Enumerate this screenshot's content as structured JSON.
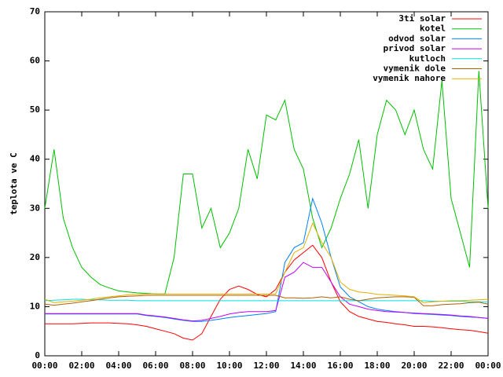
{
  "chart_data": {
    "type": "line",
    "ylabel": "teplota ve C",
    "xlim": [
      0,
      24
    ],
    "ylim": [
      0,
      70
    ],
    "yticks": [
      0,
      10,
      20,
      30,
      40,
      50,
      60,
      70
    ],
    "xticks": [
      {
        "value": 0,
        "label": "00:00"
      },
      {
        "value": 2,
        "label": "02:00"
      },
      {
        "value": 4,
        "label": "04:00"
      },
      {
        "value": 6,
        "label": "06:00"
      },
      {
        "value": 8,
        "label": "08:00"
      },
      {
        "value": 10,
        "label": "10:00"
      },
      {
        "value": 12,
        "label": "12:00"
      },
      {
        "value": 14,
        "label": "14:00"
      },
      {
        "value": 16,
        "label": "16:00"
      },
      {
        "value": 18,
        "label": "18:00"
      },
      {
        "value": 20,
        "label": "20:00"
      },
      {
        "value": 22,
        "label": "22:00"
      },
      {
        "value": 24,
        "label": "00:00"
      }
    ],
    "x": [
      0,
      0.5,
      1,
      1.5,
      2,
      2.5,
      3,
      3.5,
      4,
      4.5,
      5,
      5.5,
      6,
      6.5,
      7,
      7.5,
      8,
      8.5,
      9,
      9.5,
      10,
      10.5,
      11,
      11.5,
      12,
      12.5,
      13,
      13.5,
      14,
      14.5,
      15,
      15.5,
      16,
      16.5,
      17,
      17.5,
      18,
      18.5,
      19,
      19.5,
      20,
      20.5,
      21,
      21.5,
      22,
      22.5,
      23,
      23.5,
      24
    ],
    "series": [
      {
        "name": "3ti solar",
        "color": "#ff0000",
        "values": [
          6.5,
          6.5,
          6.5,
          6.5,
          6.6,
          6.7,
          6.7,
          6.7,
          6.6,
          6.5,
          6.3,
          6,
          5.5,
          5,
          4.5,
          3.6,
          3.2,
          4.5,
          8,
          11.5,
          13.5,
          14.2,
          13.5,
          12.5,
          12,
          13.5,
          17,
          19.5,
          21,
          22.5,
          20,
          15,
          11,
          9,
          8,
          7.5,
          7,
          6.8,
          6.5,
          6.3,
          6,
          6,
          5.9,
          5.7,
          5.5,
          5.3,
          5.2,
          4.9,
          4.6
        ]
      },
      {
        "name": "kotel",
        "color": "#00c000",
        "values": [
          30,
          42,
          28,
          22,
          18,
          16,
          14.5,
          13.8,
          13.2,
          13,
          12.8,
          12.7,
          12.6,
          12.6,
          20,
          37,
          37,
          26,
          30,
          22,
          25,
          30,
          42,
          36,
          49,
          48,
          52,
          42,
          38,
          28,
          22,
          26,
          32,
          37,
          44,
          30,
          45,
          52,
          50,
          45,
          50,
          42,
          38,
          56,
          32,
          25,
          18,
          58,
          30
        ]
      },
      {
        "name": "odvod solar",
        "color": "#0080ff",
        "values": [
          8.5,
          8.5,
          8.5,
          8.5,
          8.5,
          8.5,
          8.5,
          8.5,
          8.5,
          8.5,
          8.5,
          8.2,
          8,
          7.8,
          7.5,
          7.2,
          7,
          7,
          7.2,
          7.5,
          7.8,
          8,
          8.2,
          8.4,
          8.6,
          9,
          19,
          22,
          23,
          32,
          27,
          20,
          14,
          12,
          11,
          10,
          9.5,
          9.2,
          9,
          8.8,
          8.6,
          8.5,
          8.4,
          8.3,
          8.2,
          8,
          7.9,
          7.8,
          7.6
        ]
      },
      {
        "name": "privod solar",
        "color": "#c000ff",
        "values": [
          8.6,
          8.6,
          8.6,
          8.6,
          8.6,
          8.6,
          8.6,
          8.6,
          8.6,
          8.6,
          8.6,
          8.3,
          8.1,
          7.9,
          7.6,
          7.3,
          7.1,
          7.2,
          7.6,
          8,
          8.5,
          8.8,
          9,
          9,
          9,
          9.2,
          16,
          17,
          19,
          18,
          18,
          15,
          12,
          10.5,
          10,
          9.5,
          9.2,
          9,
          8.9,
          8.8,
          8.7,
          8.6,
          8.5,
          8.4,
          8.3,
          8.1,
          8,
          7.8,
          7.6
        ]
      },
      {
        "name": "kutloch",
        "color": "#00e0e0",
        "values": [
          11.2,
          11.3,
          11.4,
          11.5,
          11.5,
          11.4,
          11.4,
          11.3,
          11.3,
          11.3,
          11.2,
          11.2,
          11.2,
          11.2,
          11.2,
          11.2,
          11.2,
          11.2,
          11.2,
          11.2,
          11.2,
          11.2,
          11.2,
          11.2,
          11.2,
          11.2,
          11.2,
          11.2,
          11.2,
          11.2,
          11.2,
          11.2,
          11.2,
          11.2,
          11.2,
          11.2,
          11.2,
          11.2,
          11.2,
          11.2,
          11.2,
          11.2,
          11.1,
          11.1,
          11.1,
          11.1,
          11,
          11,
          11
        ]
      },
      {
        "name": "vymenik dole",
        "color": "#b06000",
        "values": [
          10.5,
          10.3,
          10.5,
          10.7,
          11,
          11.2,
          11.5,
          11.8,
          12,
          12.1,
          12.2,
          12.3,
          12.3,
          12.3,
          12.3,
          12.3,
          12.3,
          12.3,
          12.3,
          12.3,
          12.3,
          12.3,
          12.3,
          12.3,
          12.3,
          12.3,
          11.8,
          11.8,
          11.7,
          11.8,
          12,
          11.8,
          12,
          11.5,
          11.2,
          11.5,
          11.8,
          11.9,
          12,
          12,
          11.9,
          10.2,
          10.2,
          10.4,
          10.5,
          10.6,
          10.8,
          10.9,
          10.5
        ]
      },
      {
        "name": "vymenik nahore",
        "color": "#e0b000",
        "values": [
          11.5,
          10.8,
          11,
          11.1,
          11.3,
          11.5,
          11.8,
          12,
          12.2,
          12.4,
          12.5,
          12.6,
          12.6,
          12.6,
          12.6,
          12.6,
          12.6,
          12.6,
          12.6,
          12.6,
          12.6,
          12.6,
          12.6,
          12.6,
          12.6,
          12.6,
          17,
          21,
          22,
          27,
          23,
          20,
          15,
          13.5,
          13,
          12.8,
          12.5,
          12.4,
          12.3,
          12.2,
          12,
          10.8,
          11,
          11.1,
          11.2,
          11.2,
          11.3,
          11.4,
          11.5
        ]
      }
    ]
  }
}
